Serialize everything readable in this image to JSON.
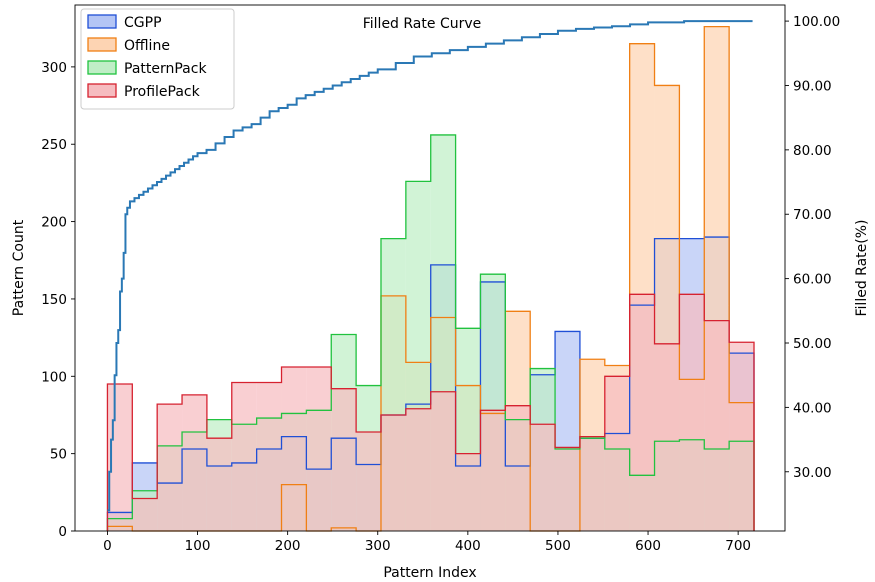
{
  "chart_data": {
    "type": "histogram",
    "title": "Filled Rate Curve",
    "xlabel": "Pattern Index",
    "ylabel": "Pattern Count",
    "y2label": "Filled Rate(%)",
    "xlim": [
      -36,
      752
    ],
    "ylim": [
      0,
      340
    ],
    "y2lim": [
      20.8,
      102.5
    ],
    "xticks": [
      0,
      100,
      200,
      300,
      400,
      500,
      600,
      700
    ],
    "yticks": [
      0,
      50,
      100,
      150,
      200,
      250,
      300
    ],
    "y2ticks": [
      "30.00",
      "40.00",
      "50.00",
      "60.00",
      "70.00",
      "80.00",
      "90.00",
      "100.00"
    ],
    "legend_position": "upper-left",
    "grid": false,
    "bins": [
      0,
      27.6,
      55.2,
      82.8,
      110.4,
      138,
      165.6,
      193.2,
      220.8,
      248.4,
      276,
      303.6,
      331.2,
      358.8,
      386.4,
      414,
      441.6,
      469.2,
      496.8,
      524.4,
      552,
      579.6,
      607.2,
      634.8,
      662.4,
      690,
      717.6
    ],
    "series": [
      {
        "name": "CGPP",
        "edge_color": "#1f4fd6",
        "fill_color": "#b4c5f5",
        "values": [
          12,
          44,
          31,
          53,
          42,
          44,
          53,
          61,
          40,
          60,
          43,
          75,
          82,
          172,
          42,
          161,
          42,
          101,
          129,
          60,
          63,
          146,
          189,
          189,
          190,
          115
        ]
      },
      {
        "name": "Offline",
        "edge_color": "#f07f14",
        "fill_color": "#fdd4b3",
        "values": [
          3,
          0,
          0,
          0,
          0,
          0,
          0,
          30,
          0,
          2,
          0,
          152,
          109,
          138,
          94,
          76,
          142,
          0,
          0,
          111,
          107,
          315,
          288,
          98,
          326,
          83
        ]
      },
      {
        "name": "PatternPack",
        "edge_color": "#21c23f",
        "fill_color": "#bfeec6",
        "values": [
          8,
          26,
          55,
          64,
          72,
          69,
          73,
          76,
          78,
          127,
          94,
          189,
          226,
          256,
          131,
          166,
          72,
          105,
          53,
          60,
          53,
          36,
          58,
          59,
          53,
          58
        ]
      },
      {
        "name": "ProfilePack",
        "edge_color": "#d62230",
        "fill_color": "#f6bcc0",
        "values": [
          95,
          21,
          82,
          88,
          60,
          96,
          96,
          106,
          106,
          92,
          64,
          75,
          79,
          90,
          50,
          78,
          81,
          69,
          54,
          61,
          100,
          153,
          121,
          153,
          136,
          122
        ]
      }
    ],
    "filled_rate_curve": {
      "color": "#2a78b5",
      "x": [
        0,
        2,
        4,
        6,
        8,
        10,
        12,
        14,
        16,
        18,
        20,
        22,
        25,
        30,
        35,
        40,
        45,
        50,
        55,
        60,
        65,
        70,
        75,
        80,
        85,
        90,
        95,
        100,
        110,
        120,
        130,
        140,
        150,
        160,
        170,
        180,
        190,
        200,
        210,
        220,
        230,
        240,
        250,
        260,
        270,
        280,
        290,
        300,
        320,
        340,
        360,
        380,
        400,
        420,
        440,
        460,
        480,
        500,
        520,
        540,
        560,
        580,
        600,
        640,
        680,
        716
      ],
      "y": [
        24,
        30,
        35,
        38,
        45,
        50,
        52,
        58,
        60,
        64,
        70,
        71,
        72,
        72.5,
        73,
        73.5,
        74,
        74.5,
        75,
        75.5,
        76,
        76.5,
        77,
        77.5,
        78,
        78.5,
        79,
        79.5,
        80,
        81,
        82,
        83,
        83.5,
        84,
        85,
        86,
        86.5,
        87,
        88,
        88.5,
        89,
        89.5,
        90,
        90.5,
        91,
        91.5,
        92,
        92.5,
        93.5,
        94.5,
        95,
        95.5,
        96,
        96.5,
        97,
        97.5,
        98,
        98.5,
        98.8,
        99,
        99.2,
        99.5,
        99.8,
        100,
        100,
        100
      ]
    }
  }
}
